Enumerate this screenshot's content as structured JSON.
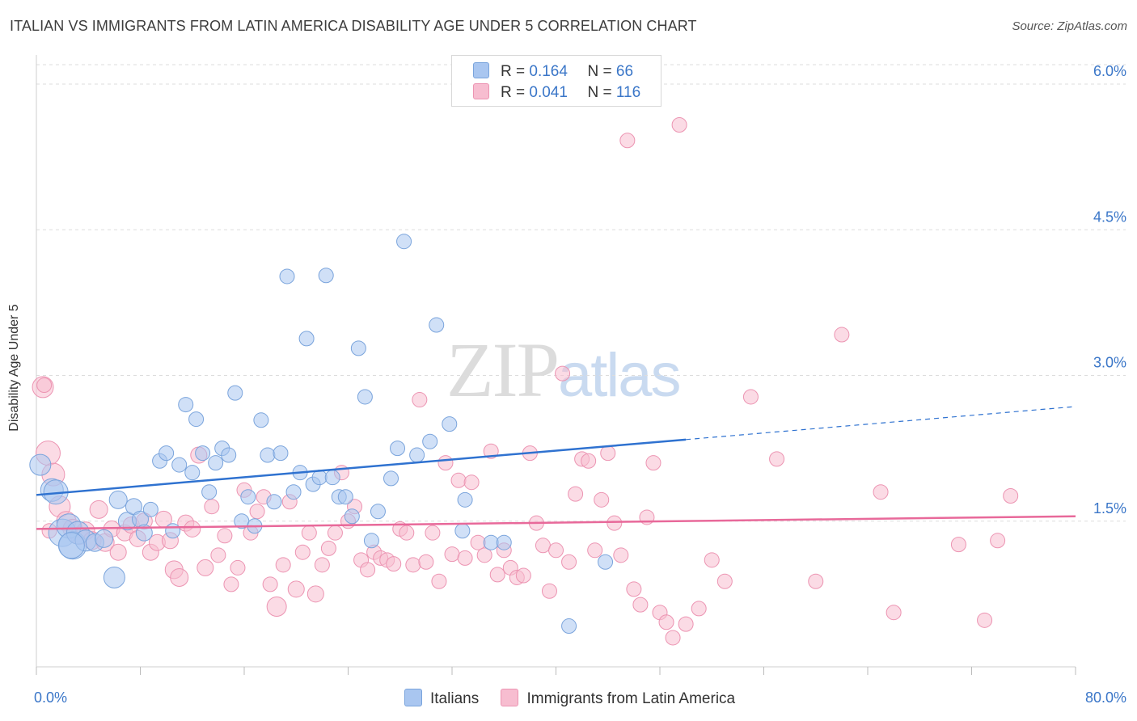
{
  "header": {
    "title": "ITALIAN VS IMMIGRANTS FROM LATIN AMERICA DISABILITY AGE UNDER 5 CORRELATION CHART",
    "source": "Source: ZipAtlas.com"
  },
  "watermark": {
    "zip": "ZIP",
    "atlas": "atlas"
  },
  "legend_top": {
    "rows": [
      {
        "r_label": "R =",
        "r_value": "0.164",
        "n_label": "N =",
        "n_value": "66"
      },
      {
        "r_label": "R =",
        "r_value": "0.041",
        "n_label": "N =",
        "n_value": "116"
      }
    ]
  },
  "legend_bottom": {
    "items": [
      {
        "label": "Italians"
      },
      {
        "label": "Immigrants from Latin America"
      }
    ]
  },
  "colors": {
    "blue_fill": "#a9c6f0",
    "blue_stroke": "#7aa4dc",
    "blue_line": "#2f72d0",
    "pink_fill": "#f7bdd0",
    "pink_stroke": "#ec94b2",
    "pink_line": "#e8699a",
    "grid": "#dddddd",
    "tick_label": "#3a76c8"
  },
  "chart_data": {
    "type": "scatter",
    "title": "ITALIAN VS IMMIGRANTS FROM LATIN AMERICA DISABILITY AGE UNDER 5 CORRELATION CHART",
    "xlabel": "",
    "ylabel": "Disability Age Under 5",
    "xlim": [
      0,
      80
    ],
    "ylim": [
      0,
      6.2
    ],
    "x_tick_labels": [
      "0.0%",
      "80.0%"
    ],
    "y_ticks": [
      1.5,
      3.0,
      4.5,
      6.0
    ],
    "y_tick_labels": [
      "1.5%",
      "3.0%",
      "4.5%",
      "6.0%"
    ],
    "grid": "horizontal dashed",
    "legend": "top-center",
    "series": [
      {
        "name": "Italians",
        "color": "#a9c6f0",
        "r": 0.164,
        "n": 66,
        "trend": {
          "x": [
            0,
            50
          ],
          "y": [
            1.77,
            2.34
          ],
          "dashed_to": [
            80,
            2.68
          ]
        },
        "points": [
          [
            0.3,
            2.08
          ],
          [
            1.2,
            1.82
          ],
          [
            1.5,
            1.8
          ],
          [
            2.0,
            1.38
          ],
          [
            2.5,
            1.45
          ],
          [
            2.8,
            1.25
          ],
          [
            3.2,
            1.38
          ],
          [
            3.8,
            1.3
          ],
          [
            4.5,
            1.28
          ],
          [
            5.2,
            1.32
          ],
          [
            6.0,
            0.92
          ],
          [
            6.3,
            1.72
          ],
          [
            7.0,
            1.5
          ],
          [
            7.5,
            1.65
          ],
          [
            8.0,
            1.52
          ],
          [
            8.3,
            1.38
          ],
          [
            8.8,
            1.62
          ],
          [
            9.5,
            2.12
          ],
          [
            10.0,
            2.2
          ],
          [
            10.5,
            1.4
          ],
          [
            11.0,
            2.08
          ],
          [
            11.5,
            2.7
          ],
          [
            12.0,
            2.0
          ],
          [
            12.3,
            2.55
          ],
          [
            12.8,
            2.2
          ],
          [
            13.3,
            1.8
          ],
          [
            13.8,
            2.1
          ],
          [
            14.3,
            2.25
          ],
          [
            14.8,
            2.18
          ],
          [
            15.3,
            2.82
          ],
          [
            15.8,
            1.5
          ],
          [
            16.3,
            1.75
          ],
          [
            16.8,
            1.45
          ],
          [
            17.3,
            2.54
          ],
          [
            17.8,
            2.18
          ],
          [
            18.3,
            1.7
          ],
          [
            18.8,
            2.2
          ],
          [
            19.3,
            4.02
          ],
          [
            19.8,
            1.8
          ],
          [
            20.3,
            2.0
          ],
          [
            20.8,
            3.38
          ],
          [
            21.3,
            1.88
          ],
          [
            21.8,
            1.95
          ],
          [
            22.3,
            4.03
          ],
          [
            22.8,
            1.95
          ],
          [
            23.3,
            1.75
          ],
          [
            23.8,
            1.75
          ],
          [
            24.3,
            1.55
          ],
          [
            24.8,
            3.28
          ],
          [
            25.3,
            2.78
          ],
          [
            25.8,
            1.3
          ],
          [
            26.3,
            1.6
          ],
          [
            27.3,
            1.94
          ],
          [
            27.8,
            2.25
          ],
          [
            28.3,
            4.38
          ],
          [
            29.3,
            2.18
          ],
          [
            30.3,
            2.32
          ],
          [
            30.8,
            3.52
          ],
          [
            31.8,
            2.5
          ],
          [
            32.8,
            1.4
          ],
          [
            33.0,
            1.72
          ],
          [
            35.0,
            1.28
          ],
          [
            36.0,
            1.28
          ],
          [
            41.0,
            0.42
          ],
          [
            43.8,
            1.08
          ],
          [
            2.7,
            1.25
          ]
        ],
        "sizes": [
          26,
          28,
          30,
          34,
          30,
          34,
          28,
          26,
          22,
          22,
          26,
          22,
          22,
          20,
          20,
          20,
          18,
          18,
          18,
          18,
          18,
          18,
          18,
          18,
          18,
          18,
          18,
          18,
          18,
          18,
          18,
          18,
          18,
          18,
          18,
          18,
          18,
          18,
          18,
          18,
          18,
          18,
          18,
          18,
          18,
          18,
          18,
          18,
          18,
          18,
          18,
          18,
          18,
          18,
          18,
          18,
          18,
          18,
          18,
          18,
          18,
          18,
          18,
          18,
          18,
          32
        ]
      },
      {
        "name": "Immigrants from Latin America",
        "color": "#f7bdd0",
        "r": 0.041,
        "n": 116,
        "trend": {
          "x": [
            0,
            80
          ],
          "y": [
            1.42,
            1.55
          ]
        },
        "points": [
          [
            0.5,
            2.88
          ],
          [
            0.9,
            2.2
          ],
          [
            1.3,
            1.98
          ],
          [
            1.8,
            1.65
          ],
          [
            2.3,
            1.5
          ],
          [
            2.8,
            1.42
          ],
          [
            3.3,
            1.35
          ],
          [
            3.8,
            1.4
          ],
          [
            4.3,
            1.3
          ],
          [
            4.8,
            1.62
          ],
          [
            5.3,
            1.28
          ],
          [
            5.8,
            1.42
          ],
          [
            6.3,
            1.18
          ],
          [
            6.8,
            1.38
          ],
          [
            7.3,
            1.46
          ],
          [
            7.8,
            1.32
          ],
          [
            8.3,
            1.5
          ],
          [
            8.8,
            1.18
          ],
          [
            9.3,
            1.28
          ],
          [
            9.8,
            1.52
          ],
          [
            10.3,
            1.3
          ],
          [
            10.6,
            1.0
          ],
          [
            11.0,
            0.92
          ],
          [
            11.5,
            1.48
          ],
          [
            12.0,
            1.42
          ],
          [
            12.5,
            2.18
          ],
          [
            13.0,
            1.02
          ],
          [
            13.5,
            1.65
          ],
          [
            14.0,
            1.15
          ],
          [
            14.5,
            1.35
          ],
          [
            15.0,
            0.85
          ],
          [
            15.5,
            1.02
          ],
          [
            16.0,
            1.82
          ],
          [
            16.5,
            1.38
          ],
          [
            17.0,
            1.6
          ],
          [
            17.5,
            1.75
          ],
          [
            18.0,
            0.85
          ],
          [
            18.5,
            0.62
          ],
          [
            19.0,
            1.05
          ],
          [
            19.5,
            1.7
          ],
          [
            20.0,
            0.8
          ],
          [
            20.5,
            1.18
          ],
          [
            21.0,
            1.38
          ],
          [
            21.5,
            0.75
          ],
          [
            22.0,
            1.05
          ],
          [
            22.5,
            1.22
          ],
          [
            23.0,
            1.38
          ],
          [
            23.5,
            2.0
          ],
          [
            24.0,
            1.5
          ],
          [
            24.5,
            1.65
          ],
          [
            25.0,
            1.1
          ],
          [
            25.5,
            1.0
          ],
          [
            26.0,
            1.18
          ],
          [
            26.5,
            1.12
          ],
          [
            27.0,
            1.1
          ],
          [
            27.5,
            1.06
          ],
          [
            28.0,
            1.42
          ],
          [
            28.5,
            1.38
          ],
          [
            29.0,
            1.05
          ],
          [
            29.5,
            2.75
          ],
          [
            30.0,
            1.08
          ],
          [
            30.5,
            1.38
          ],
          [
            31.0,
            0.88
          ],
          [
            31.5,
            2.1
          ],
          [
            32.0,
            1.16
          ],
          [
            32.5,
            1.92
          ],
          [
            33.0,
            1.12
          ],
          [
            33.5,
            1.9
          ],
          [
            34.0,
            1.28
          ],
          [
            34.5,
            1.15
          ],
          [
            35.0,
            2.22
          ],
          [
            35.5,
            0.95
          ],
          [
            36.0,
            1.2
          ],
          [
            36.5,
            1.02
          ],
          [
            37.0,
            0.92
          ],
          [
            37.5,
            0.94
          ],
          [
            38.0,
            2.2
          ],
          [
            38.5,
            1.48
          ],
          [
            39.0,
            1.25
          ],
          [
            39.5,
            0.78
          ],
          [
            40.0,
            1.2
          ],
          [
            40.5,
            3.02
          ],
          [
            41.0,
            1.08
          ],
          [
            41.5,
            1.78
          ],
          [
            42.0,
            2.14
          ],
          [
            42.5,
            2.12
          ],
          [
            43.0,
            1.2
          ],
          [
            43.5,
            1.72
          ],
          [
            44.0,
            2.2
          ],
          [
            44.5,
            1.48
          ],
          [
            45.0,
            1.15
          ],
          [
            45.5,
            5.42
          ],
          [
            46.0,
            0.8
          ],
          [
            46.5,
            0.64
          ],
          [
            47.0,
            1.54
          ],
          [
            47.5,
            2.1
          ],
          [
            48.0,
            0.56
          ],
          [
            48.5,
            0.46
          ],
          [
            49.0,
            0.3
          ],
          [
            49.5,
            5.58
          ],
          [
            50.0,
            0.44
          ],
          [
            51.0,
            0.6
          ],
          [
            52.0,
            1.1
          ],
          [
            53.0,
            0.88
          ],
          [
            55.0,
            2.78
          ],
          [
            57.0,
            2.14
          ],
          [
            60.0,
            0.88
          ],
          [
            62.0,
            3.42
          ],
          [
            65.0,
            1.8
          ],
          [
            66.0,
            0.56
          ],
          [
            71.0,
            1.26
          ],
          [
            74.0,
            1.3
          ],
          [
            75.0,
            1.76
          ],
          [
            73.0,
            0.48
          ],
          [
            1.0,
            1.4
          ],
          [
            0.6,
            2.9
          ]
        ],
        "sizes": [
          26,
          30,
          28,
          26,
          24,
          24,
          22,
          22,
          22,
          22,
          22,
          20,
          20,
          20,
          20,
          20,
          20,
          20,
          20,
          20,
          20,
          22,
          22,
          20,
          20,
          20,
          20,
          18,
          18,
          18,
          18,
          18,
          18,
          18,
          18,
          18,
          18,
          24,
          18,
          18,
          20,
          18,
          18,
          20,
          18,
          18,
          18,
          18,
          18,
          18,
          18,
          18,
          18,
          18,
          18,
          18,
          18,
          18,
          18,
          18,
          18,
          18,
          18,
          18,
          18,
          18,
          18,
          18,
          18,
          18,
          18,
          18,
          18,
          18,
          18,
          18,
          18,
          18,
          18,
          18,
          18,
          18,
          18,
          18,
          18,
          18,
          18,
          18,
          18,
          18,
          18,
          18,
          18,
          18,
          18,
          18,
          18,
          18,
          18,
          18,
          18,
          18,
          18,
          18,
          18,
          18,
          18,
          18,
          18,
          18,
          18,
          18,
          18,
          18,
          18,
          18
        ]
      }
    ]
  }
}
